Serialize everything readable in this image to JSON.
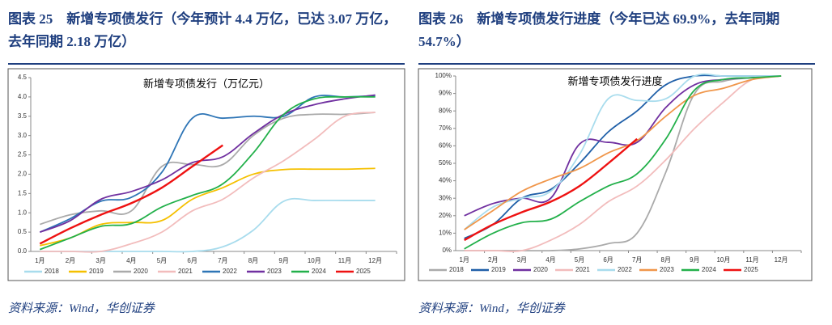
{
  "chart_data": [
    {
      "type": "line",
      "caption": "图表 25　新增专项债发行（今年预计 4.4 万亿，已达 3.07 万亿，去年同期 2.18 万亿）",
      "title": "新增专项债发行（万亿元）",
      "source": "资料来源：Wind，华创证券",
      "categories": [
        "1月",
        "2月",
        "3月",
        "4月",
        "5月",
        "6月",
        "7月",
        "8月",
        "9月",
        "10月",
        "11月",
        "12月"
      ],
      "ylim": [
        0,
        4.5
      ],
      "yticks": [
        {
          "value": 0,
          "label": "0.0"
        },
        {
          "value": 0.5,
          "label": "0.5"
        },
        {
          "value": 1,
          "label": "1.0"
        },
        {
          "value": 1.5,
          "label": "1.5"
        },
        {
          "value": 2,
          "label": "2.0"
        },
        {
          "value": 2.5,
          "label": "2.5"
        },
        {
          "value": 3,
          "label": "3.0"
        },
        {
          "value": 3.5,
          "label": "3.5"
        },
        {
          "value": 4,
          "label": "4.0"
        },
        {
          "value": 4.5,
          "label": "4.5"
        }
      ],
      "series": [
        {
          "name": "2018",
          "color": "#a8dced",
          "values": [
            0,
            0,
            0,
            0,
            0,
            0,
            0.12,
            0.55,
            1.3,
            1.32,
            1.32,
            1.32
          ]
        },
        {
          "name": "2019",
          "color": "#f5c000",
          "values": [
            0.15,
            0.35,
            0.7,
            0.75,
            0.8,
            1.35,
            1.65,
            2.0,
            2.12,
            2.13,
            2.13,
            2.15
          ]
        },
        {
          "name": "2020",
          "color": "#aaaaaa",
          "values": [
            0.7,
            0.95,
            1.05,
            1.05,
            2.2,
            2.25,
            2.25,
            3.0,
            3.45,
            3.55,
            3.55,
            3.6
          ]
        },
        {
          "name": "2021",
          "color": "#f2bcbc",
          "values": [
            0,
            0,
            0,
            0.2,
            0.5,
            1.05,
            1.35,
            1.9,
            2.35,
            2.9,
            3.5,
            3.6
          ]
        },
        {
          "name": "2022",
          "color": "#2e75b6",
          "values": [
            0.5,
            0.85,
            1.3,
            1.4,
            2.05,
            3.45,
            3.45,
            3.5,
            3.5,
            4.0,
            4.0,
            4.03
          ]
        },
        {
          "name": "2023",
          "color": "#7030a0",
          "values": [
            0.5,
            0.8,
            1.35,
            1.55,
            1.85,
            2.3,
            2.45,
            3.05,
            3.55,
            3.8,
            3.95,
            4.05
          ]
        },
        {
          "name": "2024",
          "color": "#22b04a",
          "values": [
            0.05,
            0.35,
            0.65,
            0.72,
            1.15,
            1.45,
            1.75,
            2.55,
            3.55,
            3.95,
            4.0,
            4.0
          ]
        },
        {
          "name": "2025",
          "color": "#ee1111",
          "values": [
            0.2,
            0.6,
            0.95,
            1.25,
            1.65,
            2.2,
            2.75,
            null,
            null,
            null,
            null,
            null
          ]
        }
      ]
    },
    {
      "type": "line",
      "caption": "图表 26　新增专项债发行进度（今年已达 69.9%，去年同期 54.7%）",
      "title": "新增专项债发行进度",
      "source": "资料来源：Wind，华创证券",
      "categories": [
        "1月",
        "2月",
        "3月",
        "4月",
        "5月",
        "6月",
        "7月",
        "8月",
        "9月",
        "10月",
        "11月",
        "12月"
      ],
      "ylim": [
        0,
        100
      ],
      "yticks": [
        {
          "value": 0,
          "label": "0%"
        },
        {
          "value": 10,
          "label": "10%"
        },
        {
          "value": 20,
          "label": "20%"
        },
        {
          "value": 30,
          "label": "30%"
        },
        {
          "value": 40,
          "label": "40%"
        },
        {
          "value": 50,
          "label": "50%"
        },
        {
          "value": 60,
          "label": "60%"
        },
        {
          "value": 70,
          "label": "70%"
        },
        {
          "value": 80,
          "label": "80%"
        },
        {
          "value": 90,
          "label": "90%"
        },
        {
          "value": 100,
          "label": "100%"
        }
      ],
      "series": [
        {
          "name": "2018",
          "color": "#aaaaaa",
          "values": [
            0,
            0,
            0,
            0,
            1,
            4,
            10,
            45,
            90,
            97,
            99,
            100
          ]
        },
        {
          "name": "2019",
          "color": "#1f5fa8",
          "values": [
            7,
            15,
            30,
            35,
            50,
            68,
            80,
            95,
            100,
            100,
            100,
            100
          ]
        },
        {
          "name": "2020",
          "color": "#7030a0",
          "values": [
            20,
            27,
            30,
            30,
            61,
            62,
            62,
            82,
            95,
            98,
            99,
            100
          ]
        },
        {
          "name": "2021",
          "color": "#f2bcbc",
          "values": [
            0,
            0,
            0,
            6,
            15,
            28,
            37,
            52,
            70,
            85,
            98,
            100
          ]
        },
        {
          "name": "2022",
          "color": "#a8dced",
          "values": [
            12,
            25,
            30,
            34,
            55,
            87,
            86,
            87,
            100,
            100,
            100,
            100
          ]
        },
        {
          "name": "2023",
          "color": "#f0964a",
          "values": [
            12,
            23,
            34,
            41,
            47,
            56,
            63,
            77,
            89,
            93,
            98,
            100
          ]
        },
        {
          "name": "2024",
          "color": "#22b04a",
          "values": [
            1,
            10,
            16,
            18,
            28,
            37,
            44,
            64,
            92,
            98,
            99,
            100
          ]
        },
        {
          "name": "2025",
          "color": "#ee1111",
          "values": [
            6,
            15,
            22,
            28,
            37,
            50,
            64,
            null,
            null,
            null,
            null,
            null
          ]
        }
      ]
    }
  ]
}
